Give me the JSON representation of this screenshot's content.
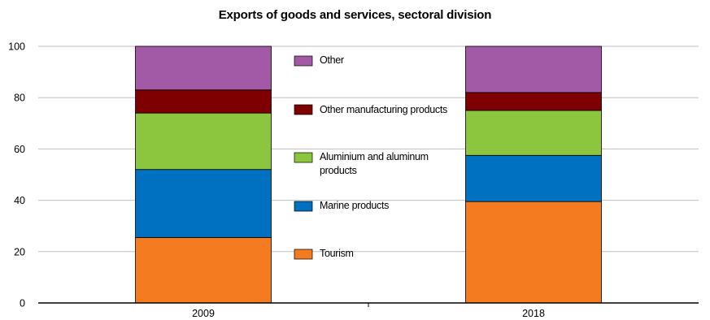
{
  "chart_data": {
    "type": "bar",
    "stacked": true,
    "title": "Exports of goods and services, sectoral division",
    "xlabel": "",
    "ylabel": "",
    "categories": [
      "2009",
      "2018"
    ],
    "ylim": [
      0,
      100
    ],
    "yticks": [
      0,
      20,
      40,
      60,
      80,
      100
    ],
    "ytick_labels": [
      "0",
      "20",
      "40",
      "60",
      "80",
      "100"
    ],
    "grid": true,
    "legend_position": "center",
    "series": [
      {
        "name": "Tourism",
        "color": "#F47B20",
        "values": [
          25.5,
          39.5
        ]
      },
      {
        "name": "Marine products",
        "color": "#0070C0",
        "values": [
          26.5,
          18
        ]
      },
      {
        "name": "Aluminium and aluminum products",
        "color": "#8CC63F",
        "values": [
          22,
          17.5
        ]
      },
      {
        "name": "Other manufacturing products",
        "color": "#7F0000",
        "values": [
          9,
          7
        ]
      },
      {
        "name": "Other",
        "color": "#A259A6",
        "values": [
          17,
          18
        ]
      }
    ],
    "legend_order": [
      "Other",
      "Other manufacturing products",
      "Aluminium and aluminum products",
      "Marine products",
      "Tourism"
    ]
  }
}
